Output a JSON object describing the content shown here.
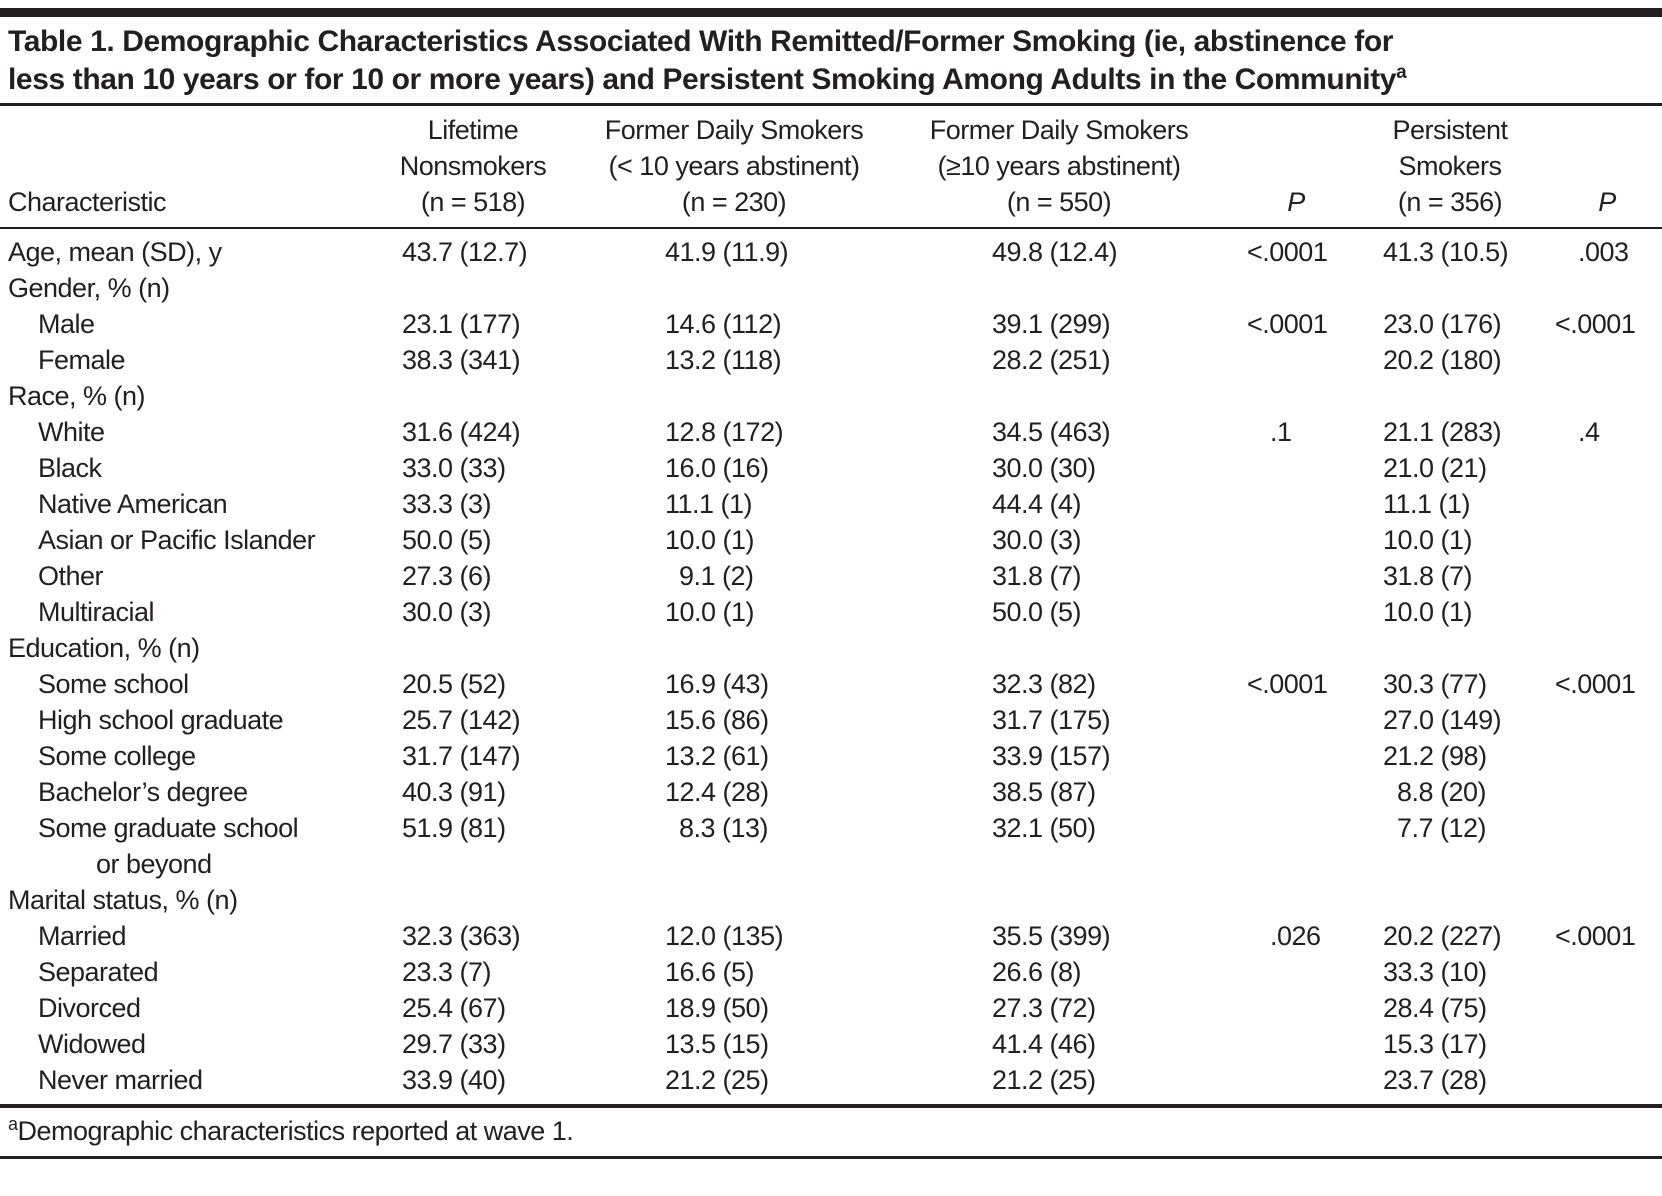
{
  "title_lines": [
    "Table 1. Demographic Characteristics Associated With Remitted/Former Smoking (ie, abstinence for",
    "less than 10 years or for 10 or more years) and Persistent Smoking Among Adults in the Community"
  ],
  "header": {
    "characteristic_label": "Characteristic",
    "groups": [
      {
        "lines": [
          "Lifetime",
          "Nonsmokers",
          "(n = 518)"
        ]
      },
      {
        "lines": [
          "Former Daily Smokers",
          "(< 10 years abstinent)",
          "(n = 230)"
        ]
      },
      {
        "lines": [
          "Former Daily Smokers",
          "(≥10 years abstinent)",
          "(n = 550)"
        ]
      },
      {
        "lines": [
          "P"
        ],
        "italic": true
      },
      {
        "lines": [
          "Persistent",
          "Smokers",
          "(n = 356)"
        ]
      },
      {
        "lines": [
          "P"
        ],
        "italic": true
      }
    ]
  },
  "rows": [
    {
      "label": "Age, mean (SD), y",
      "indent": 0,
      "values": [
        "43.7 (12.7)",
        "41.9 (11.9)",
        "49.8 (12.4)",
        "<.0001",
        "41.3 (10.5)",
        ".003"
      ]
    },
    {
      "label": "Gender, % (n)",
      "indent": 0,
      "values": [
        "",
        "",
        "",
        "",
        "",
        ""
      ]
    },
    {
      "label": "Male",
      "indent": 1,
      "values": [
        "23.1 (177)",
        "14.6 (112)",
        "39.1 (299)",
        "<.0001",
        "23.0 (176)",
        "<.0001"
      ]
    },
    {
      "label": "Female",
      "indent": 1,
      "values": [
        "38.3 (341)",
        "13.2 (118)",
        "28.2 (251)",
        "",
        "20.2 (180)",
        ""
      ]
    },
    {
      "label": "Race, % (n)",
      "indent": 0,
      "values": [
        "",
        "",
        "",
        "",
        "",
        ""
      ]
    },
    {
      "label": "White",
      "indent": 1,
      "values": [
        "31.6 (424)",
        "12.8 (172)",
        "34.5 (463)",
        ".1",
        "21.1 (283)",
        ".4"
      ]
    },
    {
      "label": "Black",
      "indent": 1,
      "values": [
        "33.0 (33)",
        "16.0 (16)",
        "30.0 (30)",
        "",
        "21.0 (21)",
        ""
      ]
    },
    {
      "label": "Native American",
      "indent": 1,
      "values": [
        "33.3 (3)",
        "11.1 (1)",
        "44.4 (4)",
        "",
        "11.1 (1)",
        ""
      ]
    },
    {
      "label": "Asian or Pacific Islander",
      "indent": 1,
      "values": [
        "50.0 (5)",
        "10.0 (1)",
        "30.0 (3)",
        "",
        "10.0 (1)",
        ""
      ]
    },
    {
      "label": "Other",
      "indent": 1,
      "values": [
        "27.3 (6)",
        "9.1 (2)",
        "31.8 (7)",
        "",
        "31.8 (7)",
        ""
      ]
    },
    {
      "label": "Multiracial",
      "indent": 1,
      "values": [
        "30.0 (3)",
        "10.0 (1)",
        "50.0 (5)",
        "",
        "10.0 (1)",
        ""
      ]
    },
    {
      "label": "Education, % (n)",
      "indent": 0,
      "values": [
        "",
        "",
        "",
        "",
        "",
        ""
      ]
    },
    {
      "label": "Some school",
      "indent": 1,
      "values": [
        "20.5 (52)",
        "16.9 (43)",
        "32.3 (82)",
        "<.0001",
        "30.3 (77)",
        "<.0001"
      ]
    },
    {
      "label": "High school graduate",
      "indent": 1,
      "values": [
        "25.7 (142)",
        "15.6 (86)",
        "31.7 (175)",
        "",
        "27.0 (149)",
        ""
      ]
    },
    {
      "label": "Some college",
      "indent": 1,
      "values": [
        "31.7 (147)",
        "13.2 (61)",
        "33.9 (157)",
        "",
        "21.2 (98)",
        ""
      ]
    },
    {
      "label": "Bachelor’s degree",
      "indent": 1,
      "values": [
        "40.3 (91)",
        "12.4 (28)",
        "38.5 (87)",
        "",
        "8.8 (20)",
        ""
      ]
    },
    {
      "label": "Some graduate school or beyond",
      "label_lines": [
        "Some graduate school",
        "or beyond"
      ],
      "indent": 1,
      "values": [
        "51.9 (81)",
        "8.3 (13)",
        "32.1 (50)",
        "",
        "7.7 (12)",
        ""
      ]
    },
    {
      "label": "Marital status, % (n)",
      "indent": 0,
      "values": [
        "",
        "",
        "",
        "",
        "",
        ""
      ]
    },
    {
      "label": "Married",
      "indent": 1,
      "values": [
        "32.3 (363)",
        "12.0 (135)",
        "35.5 (399)",
        ".026",
        "20.2 (227)",
        "<.0001"
      ]
    },
    {
      "label": "Separated",
      "indent": 1,
      "values": [
        "23.3 (7)",
        "16.6 (5)",
        "26.6 (8)",
        "",
        "33.3 (10)",
        ""
      ]
    },
    {
      "label": "Divorced",
      "indent": 1,
      "values": [
        "25.4 (67)",
        "18.9 (50)",
        "27.3 (72)",
        "",
        "28.4 (75)",
        ""
      ]
    },
    {
      "label": "Widowed",
      "indent": 1,
      "values": [
        "29.7 (33)",
        "13.5 (15)",
        "41.4 (46)",
        "",
        "15.3 (17)",
        ""
      ]
    },
    {
      "label": "Never married",
      "indent": 1,
      "values": [
        "33.9 (40)",
        "21.2 (25)",
        "21.2 (25)",
        "",
        "23.7 (28)",
        ""
      ]
    }
  ],
  "footnote": {
    "marker": "a",
    "text": "Demographic characteristics reported at wave 1."
  },
  "colors": {
    "ink": "#231f20",
    "background": "#ffffff"
  }
}
